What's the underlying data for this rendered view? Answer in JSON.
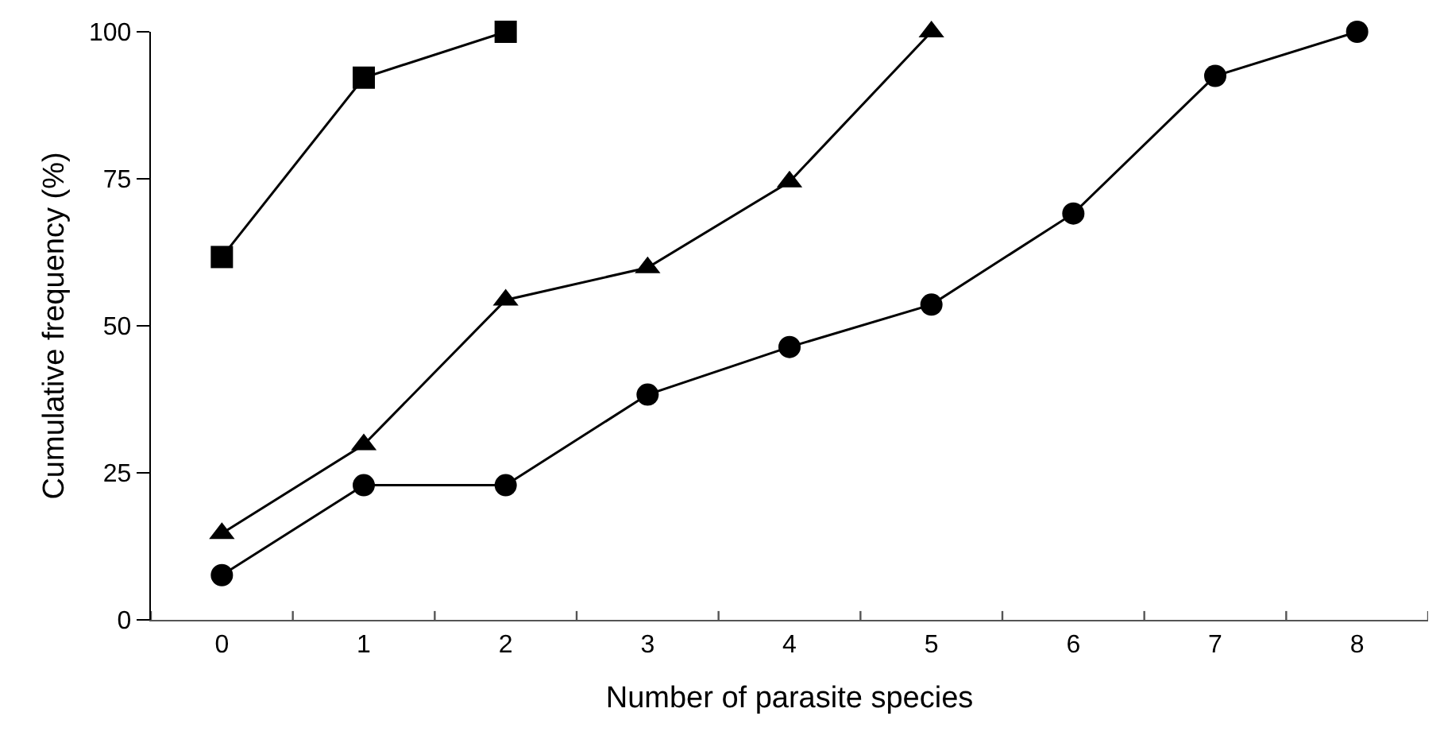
{
  "chart_data": {
    "type": "line",
    "xlabel": "Number of parasite species",
    "ylabel": "Cumulative frequency (%)",
    "categories": [
      "0",
      "1",
      "2",
      "3",
      "4",
      "5",
      "6",
      "7",
      "8"
    ],
    "ylim": [
      0,
      100
    ],
    "yticks": [
      0,
      25,
      50,
      75,
      100
    ],
    "line_style": "solid",
    "series": [
      {
        "color": "#000000",
        "marker": "square",
        "values": [
          61.7,
          92.2,
          100,
          null,
          null,
          null,
          null,
          null,
          null
        ]
      },
      {
        "color": "#000000",
        "marker": "triangle",
        "values": [
          14.7,
          29.8,
          54.4,
          59.9,
          74.5,
          100,
          null,
          null,
          null
        ]
      },
      {
        "color": "#000000",
        "marker": "circle",
        "values": [
          7.6,
          22.9,
          22.9,
          38.3,
          46.4,
          53.6,
          69.1,
          92.5,
          100
        ]
      }
    ]
  }
}
